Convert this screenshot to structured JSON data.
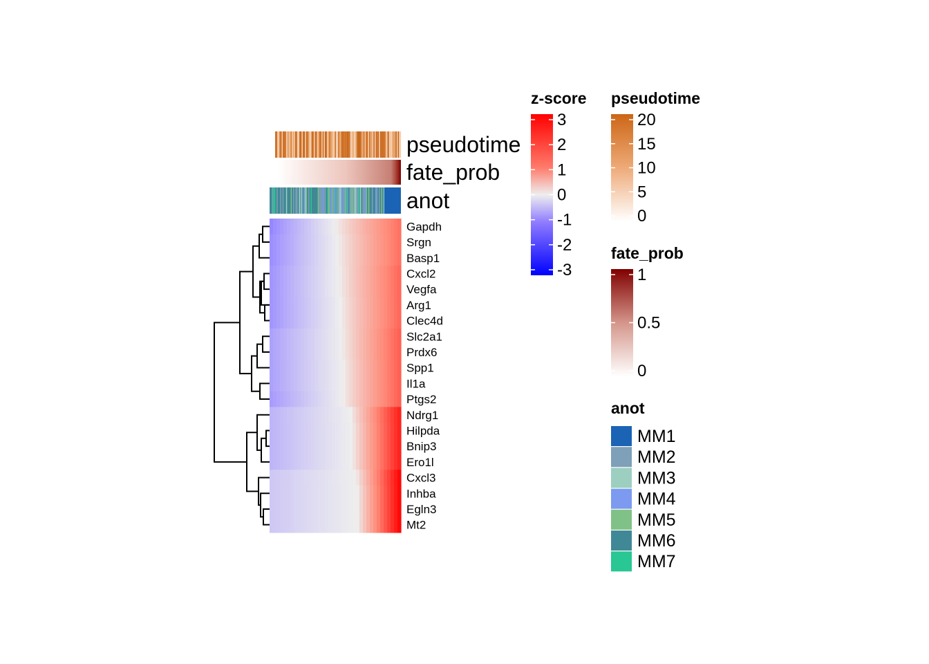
{
  "chart_data": {
    "type": "heatmap",
    "genes": [
      "Gapdh",
      "Srgn",
      "Basp1",
      "Cxcl2",
      "Vegfa",
      "Arg1",
      "Clec4d",
      "Slc2a1",
      "Prdx6",
      "Spp1",
      "Il1a",
      "Ptgs2",
      "Ndrg1",
      "Hilpda",
      "Bnip3",
      "Ero1l",
      "Cxcl3",
      "Inhba",
      "Egln3",
      "Mt2"
    ],
    "profile_note_zero_crossing": [
      0.5,
      0.52,
      0.52,
      0.53,
      0.53,
      0.54,
      0.54,
      0.55,
      0.55,
      0.56,
      0.56,
      0.56,
      0.62,
      0.63,
      0.63,
      0.63,
      0.66,
      0.67,
      0.67,
      0.67
    ],
    "profile_min_z": [
      -1.6,
      -1.5,
      -1.5,
      -1.4,
      -1.4,
      -1.4,
      -1.4,
      -1.2,
      -1.2,
      -1.2,
      -1.2,
      -1.3,
      -0.9,
      -0.9,
      -0.9,
      -0.9,
      -0.6,
      -0.6,
      -0.6,
      -0.6
    ],
    "profile_max_z": [
      1.8,
      1.8,
      1.8,
      1.9,
      1.9,
      1.9,
      1.9,
      2.0,
      2.0,
      2.0,
      2.0,
      2.0,
      2.7,
      2.7,
      2.7,
      2.7,
      3.0,
      3.0,
      3.0,
      3.0
    ],
    "annotations": [
      {
        "name": "pseudotime",
        "kind": "continuous",
        "range": [
          0,
          20
        ]
      },
      {
        "name": "fate_prob",
        "kind": "continuous",
        "range": [
          0,
          1
        ]
      },
      {
        "name": "anot",
        "kind": "categorical",
        "levels": [
          "MM1",
          "MM2",
          "MM3",
          "MM4",
          "MM5",
          "MM6",
          "MM7"
        ]
      }
    ],
    "legends": {
      "zscore": {
        "title": "z-score",
        "ticks": [
          "3",
          "2",
          "1",
          "0",
          "-1",
          "-2",
          "-3"
        ],
        "values": [
          3,
          2,
          1,
          0,
          -1,
          -2,
          -3
        ],
        "colors": {
          "low": "#0000ff",
          "mid": "#eeeeee",
          "high": "#ff0000"
        }
      },
      "pseudotime": {
        "title": "pseudotime",
        "ticks": [
          "20",
          "15",
          "10",
          "5",
          "0"
        ],
        "values": [
          20,
          15,
          10,
          5,
          0
        ],
        "colors": {
          "low": "#ffffff",
          "high": "#cc6615"
        }
      },
      "fate_prob": {
        "title": "fate_prob",
        "ticks": [
          "1",
          "0.5",
          "0"
        ],
        "values": [
          1,
          0.5,
          0
        ],
        "colors": {
          "low": "#ffffff",
          "high": "#800000"
        }
      },
      "anot": {
        "title": "anot",
        "items": [
          {
            "label": "MM1",
            "color": "#1b63b4"
          },
          {
            "label": "MM2",
            "color": "#7ea0b8"
          },
          {
            "label": "MM3",
            "color": "#9ccfc0"
          },
          {
            "label": "MM4",
            "color": "#7b9af0"
          },
          {
            "label": "MM5",
            "color": "#80c187"
          },
          {
            "label": "MM6",
            "color": "#418896"
          },
          {
            "label": "MM7",
            "color": "#28c793"
          }
        ]
      }
    },
    "dendrogram_leaf_order": [
      "Gapdh",
      "Srgn",
      "Basp1",
      "Cxcl2",
      "Vegfa",
      "Arg1",
      "Clec4d",
      "Slc2a1",
      "Prdx6",
      "Spp1",
      "Il1a",
      "Ptgs2",
      "Ndrg1",
      "Hilpda",
      "Bnip3",
      "Ero1l",
      "Cxcl3",
      "Inhba",
      "Egln3",
      "Mt2"
    ]
  }
}
